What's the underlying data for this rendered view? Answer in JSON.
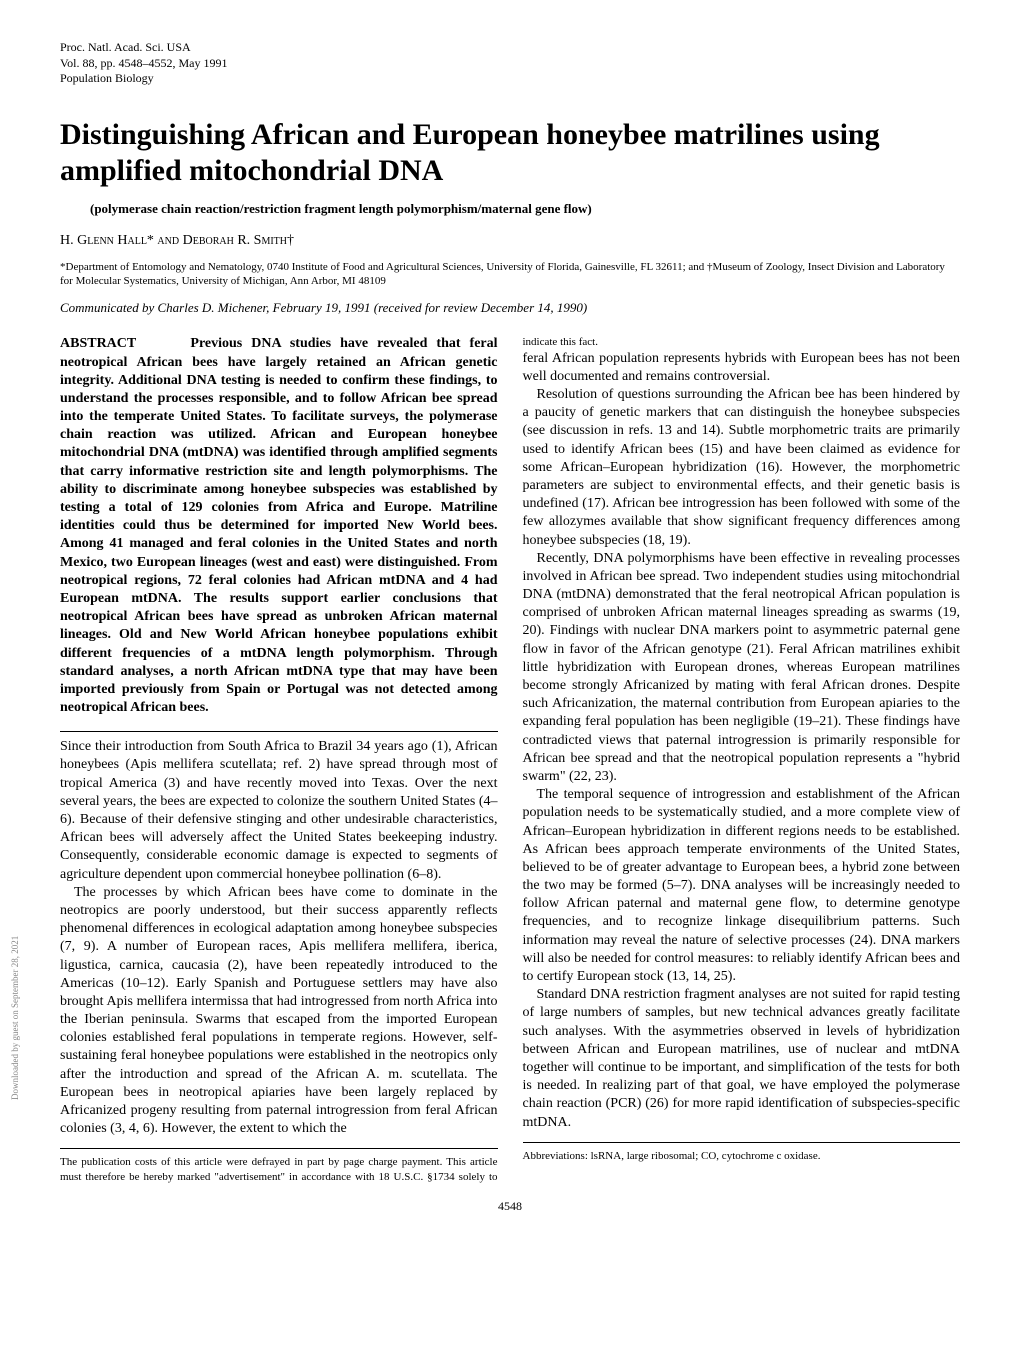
{
  "journal": {
    "line1": "Proc. Natl. Acad. Sci. USA",
    "line2": "Vol. 88, pp. 4548–4552, May 1991",
    "line3": "Population Biology"
  },
  "title": "Distinguishing African and European honeybee matrilines using amplified mitochondrial DNA",
  "subtitle": "(polymerase chain reaction/restriction fragment length polymorphism/maternal gene flow)",
  "authors": "H. Glenn Hall* and Deborah R. Smith†",
  "affiliations": "*Department of Entomology and Nematology, 0740 Institute of Food and Agricultural Sciences, University of Florida, Gainesville, FL 32611; and †Museum of Zoology, Insect Division and Laboratory for Molecular Systematics, University of Michigan, Ann Arbor, MI 48109",
  "communicated": "Communicated by Charles D. Michener, February 19, 1991 (received for review December 14, 1990)",
  "abstract_label": "ABSTRACT",
  "abstract": "Previous DNA studies have revealed that feral neotropical African bees have largely retained an African genetic integrity. Additional DNA testing is needed to confirm these findings, to understand the processes responsible, and to follow African bee spread into the temperate United States. To facilitate surveys, the polymerase chain reaction was utilized. African and European honeybee mitochondrial DNA (mtDNA) was identified through amplified segments that carry informative restriction site and length polymorphisms. The ability to discriminate among honeybee subspecies was established by testing a total of 129 colonies from Africa and Europe. Matriline identities could thus be determined for imported New World bees. Among 41 managed and feral colonies in the United States and north Mexico, two European lineages (west and east) were distinguished. From neotropical regions, 72 feral colonies had African mtDNA and 4 had European mtDNA. The results support earlier conclusions that neotropical African bees have spread as unbroken African maternal lineages. Old and New World African honeybee populations exhibit different frequencies of a mtDNA length polymorphism. Through standard analyses, a north African mtDNA type that may have been imported previously from Spain or Portugal was not detected among neotropical African bees.",
  "body": {
    "p1": "Since their introduction from South Africa to Brazil 34 years ago (1), African honeybees (Apis mellifera scutellata; ref. 2) have spread through most of tropical America (3) and have recently moved into Texas. Over the next several years, the bees are expected to colonize the southern United States (4–6). Because of their defensive stinging and other undesirable characteristics, African bees will adversely affect the United States beekeeping industry. Consequently, considerable economic damage is expected to segments of agriculture dependent upon commercial honeybee pollination (6–8).",
    "p2": "The processes by which African bees have come to dominate in the neotropics are poorly understood, but their success apparently reflects phenomenal differences in ecological adaptation among honeybee subspecies (7, 9). A number of European races, Apis mellifera mellifera, iberica, ligustica, carnica, caucasia (2), have been repeatedly introduced to the Americas (10–12). Early Spanish and Portuguese settlers may have also brought Apis mellifera intermissa that had introgressed from north Africa into the Iberian peninsula. Swarms that escaped from the imported European colonies established feral populations in temperate regions. However, self-sustaining feral honeybee populations were established in the neotropics only after the introduction and spread of the African A. m. scutellata. The European bees in neotropical apiaries have been largely replaced by Africanized progeny resulting from paternal introgression from feral African colonies (3, 4, 6). However, the extent to which the",
    "p3": "feral African population represents hybrids with European bees has not been well documented and remains controversial.",
    "p4": "Resolution of questions surrounding the African bee has been hindered by a paucity of genetic markers that can distinguish the honeybee subspecies (see discussion in refs. 13 and 14). Subtle morphometric traits are primarily used to identify African bees (15) and have been claimed as evidence for some African–European hybridization (16). However, the morphometric parameters are subject to environmental effects, and their genetic basis is undefined (17). African bee introgression has been followed with some of the few allozymes available that show significant frequency differences among honeybee subspecies (18, 19).",
    "p5": "Recently, DNA polymorphisms have been effective in revealing processes involved in African bee spread. Two independent studies using mitochondrial DNA (mtDNA) demonstrated that the feral neotropical African population is comprised of unbroken African maternal lineages spreading as swarms (19, 20). Findings with nuclear DNA markers point to asymmetric paternal gene flow in favor of the African genotype (21). Feral African matrilines exhibit little hybridization with European drones, whereas European matrilines become strongly Africanized by mating with feral African drones. Despite such Africanization, the maternal contribution from European apiaries to the expanding feral population has been negligible (19–21). These findings have contradicted views that paternal introgression is primarily responsible for African bee spread and that the neotropical population represents a \"hybrid swarm\" (22, 23).",
    "p6": "The temporal sequence of introgression and establishment of the African population needs to be systematically studied, and a more complete view of African–European hybridization in different regions needs to be established. As African bees approach temperate environments of the United States, believed to be of greater advantage to European bees, a hybrid zone between the two may be formed (5–7). DNA analyses will be increasingly needed to follow African paternal and maternal gene flow, to determine genotype frequencies, and to recognize linkage disequilibrium patterns. Such information may reveal the nature of selective processes (24). DNA markers will also be needed for control measures: to reliably identify African bees and to certify European stock (13, 14, 25).",
    "p7": "Standard DNA restriction fragment analyses are not suited for rapid testing of large numbers of samples, but new technical advances greatly facilitate such analyses. With the asymmetries observed in levels of hybridization between African and European matrilines, use of nuclear and mtDNA together will continue to be important, and simplification of the tests for both is needed. In realizing part of that goal, we have employed the polymerase chain reaction (PCR) (26) for more rapid identification of subspecies-specific mtDNA."
  },
  "footnote_left": "The publication costs of this article were defrayed in part by page charge payment. This article must therefore be hereby marked \"advertisement\" in accordance with 18 U.S.C. §1734 solely to indicate this fact.",
  "footnote_right": "Abbreviations: lsRNA, large ribosomal; CO, cytochrome c oxidase.",
  "page_number": "4548",
  "sidebar": "Downloaded by guest on September 28, 2021"
}
